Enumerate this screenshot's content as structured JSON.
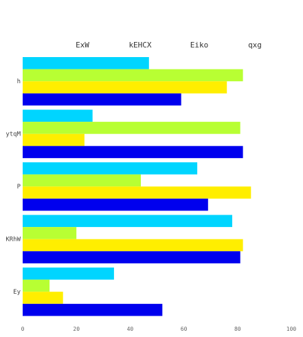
{
  "chart_data": {
    "type": "bar",
    "orientation": "horizontal",
    "title": "",
    "xlabel": "",
    "ylabel": "",
    "xlim": [
      0,
      100
    ],
    "x_ticks": [
      "0",
      "20",
      "40",
      "60",
      "80",
      "100"
    ],
    "grid": false,
    "legend_position": "top",
    "categories": [
      "h",
      "ytqM",
      "P",
      "KRhW",
      "Ey"
    ],
    "series": [
      {
        "name": "ExW",
        "color": "#00d5ff",
        "values": [
          47,
          26,
          65,
          78,
          34
        ]
      },
      {
        "name": "kEHCX",
        "color": "#b8ff33",
        "values": [
          82,
          81,
          44,
          20,
          10
        ]
      },
      {
        "name": "Eiko",
        "color": "#ffee00",
        "values": [
          76,
          23,
          85,
          82,
          15
        ]
      },
      {
        "name": "qxg",
        "color": "#0000ee",
        "values": [
          59,
          82,
          69,
          81,
          52
        ]
      }
    ]
  }
}
